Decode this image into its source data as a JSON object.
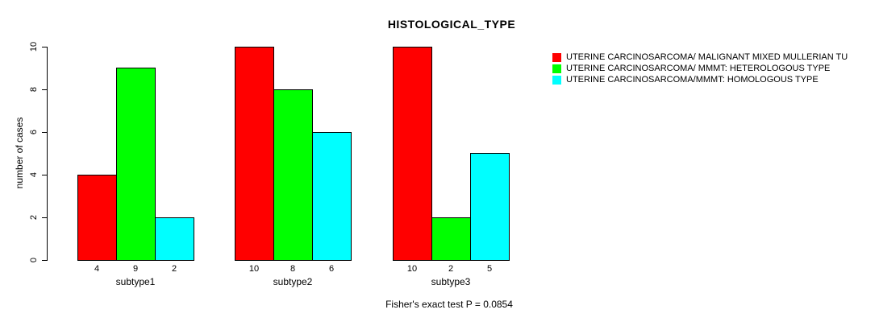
{
  "chart_data": {
    "type": "bar",
    "title": "HISTOLOGICAL_TYPE",
    "ylabel": "number of cases",
    "xlabel": "",
    "categories": [
      "subtype1",
      "subtype2",
      "subtype3"
    ],
    "series": [
      {
        "name": "UTERINE CARCINOSARCOMA/ MALIGNANT MIXED MULLERIAN TU",
        "color": "#FF0000",
        "values": [
          4,
          10,
          10
        ]
      },
      {
        "name": "UTERINE CARCINOSARCOMA/ MMMT: HETEROLOGOUS TYPE",
        "color": "#00FF00",
        "values": [
          9,
          8,
          2
        ]
      },
      {
        "name": "UTERINE CARCINOSARCOMA/MMMT: HOMOLOGOUS TYPE",
        "color": "#00FFFF",
        "values": [
          2,
          6,
          5
        ]
      }
    ],
    "ylim": [
      0,
      10
    ],
    "yticks": [
      0,
      2,
      4,
      6,
      8,
      10
    ],
    "bar_value_labels": true,
    "grid": false,
    "legend_position": "right",
    "annotation": "Fisher's exact test P = 0.0854",
    "axis_color": "#000000",
    "background_color": "#FFFFFF"
  }
}
